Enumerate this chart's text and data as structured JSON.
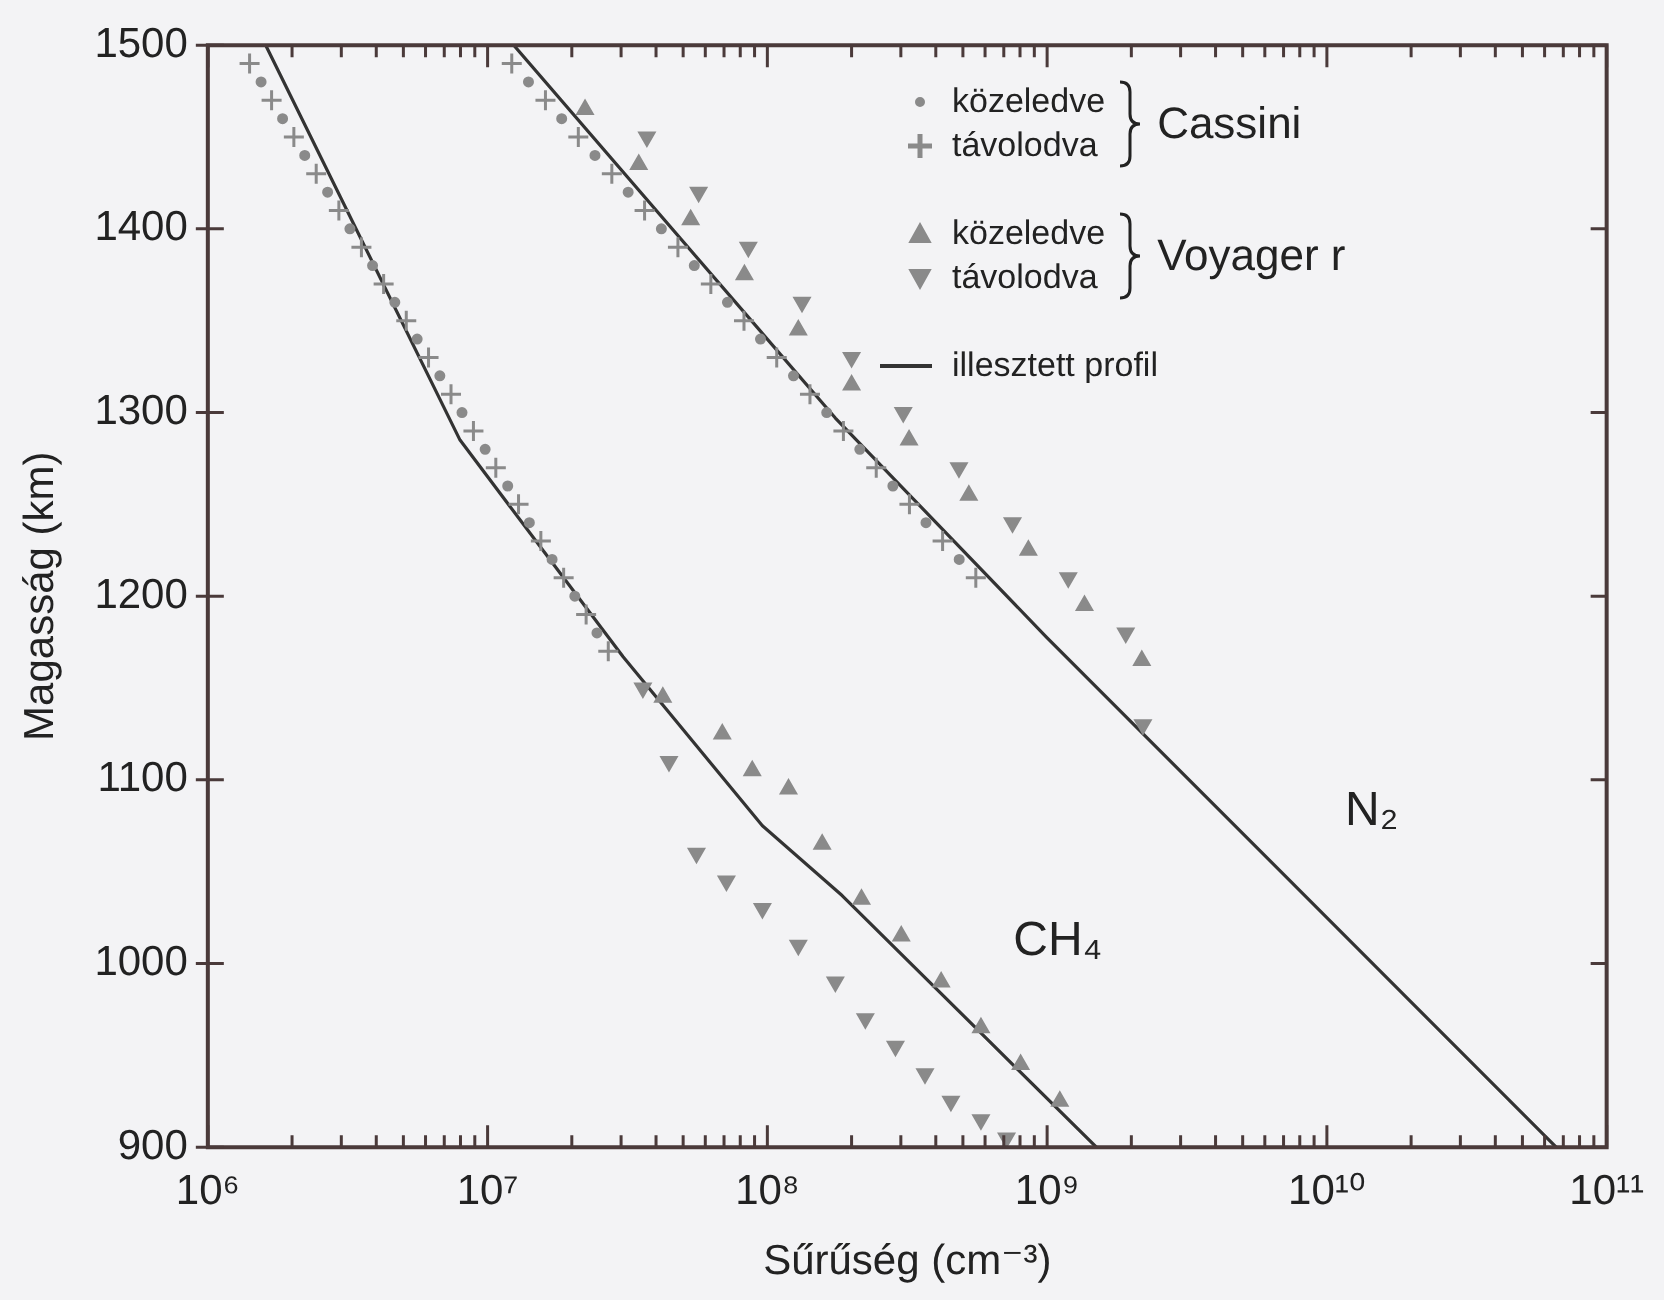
{
  "chart_data": {
    "type": "scatter",
    "xlabel": "Sűrűség (cm⁻³)",
    "ylabel": "Magasság (km)",
    "log": "x",
    "legend": "top right",
    "grid": false,
    "xlim": [
      1000000,
      100000000000
    ],
    "ylim": [
      900,
      1500
    ],
    "xticks": [
      {
        "value": 1000000,
        "label": "10⁶"
      },
      {
        "value": 2000000,
        "label": null
      },
      {
        "value": 3000000,
        "label": null
      },
      {
        "value": 4000000,
        "label": null
      },
      {
        "value": 5000000,
        "label": null
      },
      {
        "value": 6000000,
        "label": null
      },
      {
        "value": 7000000,
        "label": null
      },
      {
        "value": 8000000,
        "label": null
      },
      {
        "value": 9000000,
        "label": null
      },
      {
        "value": 10000000,
        "label": "10⁷"
      },
      {
        "value": 20000000,
        "label": null
      },
      {
        "value": 30000000,
        "label": null
      },
      {
        "value": 40000000,
        "label": null
      },
      {
        "value": 50000000,
        "label": null
      },
      {
        "value": 60000000,
        "label": null
      },
      {
        "value": 70000000,
        "label": null
      },
      {
        "value": 80000000,
        "label": null
      },
      {
        "value": 90000000,
        "label": null
      },
      {
        "value": 100000000,
        "label": "10⁸"
      },
      {
        "value": 200000000,
        "label": null
      },
      {
        "value": 300000000,
        "label": null
      },
      {
        "value": 400000000,
        "label": null
      },
      {
        "value": 500000000,
        "label": null
      },
      {
        "value": 600000000,
        "label": null
      },
      {
        "value": 700000000,
        "label": null
      },
      {
        "value": 800000000,
        "label": null
      },
      {
        "value": 900000000,
        "label": null
      },
      {
        "value": 1000000000,
        "label": "10⁹"
      },
      {
        "value": 2000000000,
        "label": null
      },
      {
        "value": 3000000000,
        "label": null
      },
      {
        "value": 4000000000,
        "label": null
      },
      {
        "value": 5000000000,
        "label": null
      },
      {
        "value": 6000000000,
        "label": null
      },
      {
        "value": 7000000000,
        "label": null
      },
      {
        "value": 8000000000,
        "label": null
      },
      {
        "value": 9000000000,
        "label": null
      },
      {
        "value": 10000000000,
        "label": "10¹⁰"
      },
      {
        "value": 20000000000,
        "label": null
      },
      {
        "value": 30000000000,
        "label": null
      },
      {
        "value": 40000000000,
        "label": null
      },
      {
        "value": 50000000000,
        "label": null
      },
      {
        "value": 60000000000,
        "label": null
      },
      {
        "value": 70000000000,
        "label": null
      },
      {
        "value": 80000000000,
        "label": null
      },
      {
        "value": 90000000000,
        "label": null
      },
      {
        "value": 100000000000,
        "label": "10¹¹"
      }
    ],
    "yticks": [
      900,
      1000,
      1100,
      1200,
      1300,
      1400,
      1500
    ],
    "annotations": [
      "Cassini",
      "Voyager r",
      "CH₄",
      "N₂"
    ],
    "series": [
      {
        "name": "közeledve",
        "type": "scatter",
        "marker": "circle",
        "color": "#8a8a8a",
        "x": [
          1550000,
          1850000,
          2220000,
          2680000,
          3220000,
          3880000,
          4660000,
          5600000,
          6750000,
          8100000,
          9800000,
          11800000,
          14100000,
          17000000,
          20500000,
          24600000,
          14000000,
          18400000,
          24200000,
          31800000,
          41800000,
          54800000,
          72000000,
          94500000,
          124000000,
          163000000,
          214000000,
          281000000,
          369000000,
          485000000
        ],
        "values": [
          1480,
          1460,
          1440,
          1420,
          1400,
          1380,
          1360,
          1340,
          1320,
          1300,
          1280,
          1260,
          1240,
          1220,
          1200,
          1180,
          1480,
          1460,
          1440,
          1420,
          1400,
          1380,
          1360,
          1340,
          1320,
          1300,
          1280,
          1260,
          1240,
          1220
        ]
      },
      {
        "name": "távolodva",
        "type": "scatter",
        "marker": "cross",
        "color": "#8a8a8a",
        "x": [
          1410000,
          1690000,
          2030000,
          2440000,
          2940000,
          3540000,
          4250000,
          5120000,
          6150000,
          7400000,
          8900000,
          10700000,
          12900000,
          15500000,
          18700000,
          22500000,
          27000000,
          12200000,
          16100000,
          21100000,
          27800000,
          36400000,
          47900000,
          62800000,
          82500000,
          108000000,
          142000000,
          187000000,
          245000000,
          322000000,
          423000000,
          556000000
        ],
        "values": [
          1490,
          1470,
          1450,
          1430,
          1410,
          1390,
          1370,
          1350,
          1330,
          1310,
          1290,
          1270,
          1250,
          1230,
          1210,
          1190,
          1170,
          1490,
          1470,
          1450,
          1430,
          1410,
          1390,
          1370,
          1350,
          1330,
          1310,
          1290,
          1270,
          1250,
          1230,
          1210
        ]
      },
      {
        "name": "közeledve",
        "type": "scatter",
        "marker": "triangle",
        "color": "#8a8a8a",
        "x": [
          22300000,
          34700000,
          53200000,
          82800000,
          129000000,
          200000000,
          321000000,
          525000000,
          857000000,
          1360000000,
          2180000000,
          42300000,
          69000000,
          88300000,
          119000000,
          157000000,
          217000000,
          301000000,
          418000000,
          580000000,
          804000000,
          1110000000
        ],
        "values": [
          1465,
          1435,
          1405,
          1375,
          1345,
          1315,
          1285,
          1255,
          1225,
          1195,
          1165,
          1145,
          1125,
          1105,
          1095,
          1065,
          1035,
          1015,
          990,
          965,
          945,
          925
        ]
      },
      {
        "name": "távolodva",
        "type": "scatter",
        "marker": "triangle-down",
        "color": "#8a8a8a",
        "x": [
          37100000,
          56800000,
          85500000,
          133000000,
          200000000,
          306000000,
          484000000,
          752000000,
          1190000000,
          1910000000,
          2200000000,
          35900000,
          44500000,
          55800000,
          71400000,
          96000000,
          129000000,
          175000000,
          224000000,
          287000000,
          366000000,
          453000000,
          580000000,
          716000000
        ],
        "values": [
          1450,
          1420,
          1390,
          1360,
          1330,
          1300,
          1270,
          1240,
          1210,
          1180,
          1130,
          1150,
          1110,
          1060,
          1045,
          1030,
          1010,
          990,
          970,
          955,
          940,
          925,
          915,
          905
        ]
      },
      {
        "name": "illesztett profil",
        "type": "line",
        "color": "#333333",
        "x": [
          1610000,
          7970000,
          30500000,
          96000000,
          185000000,
          1500000000
        ],
        "values": [
          1500,
          1285,
          1167,
          1075,
          1037,
          900
        ]
      },
      {
        "type": "line",
        "color": "#333333",
        "x": [
          12400000,
          175000000,
          990000000,
          66000000000
        ],
        "values": [
          1500,
          1297,
          1178,
          900
        ]
      }
    ]
  }
}
